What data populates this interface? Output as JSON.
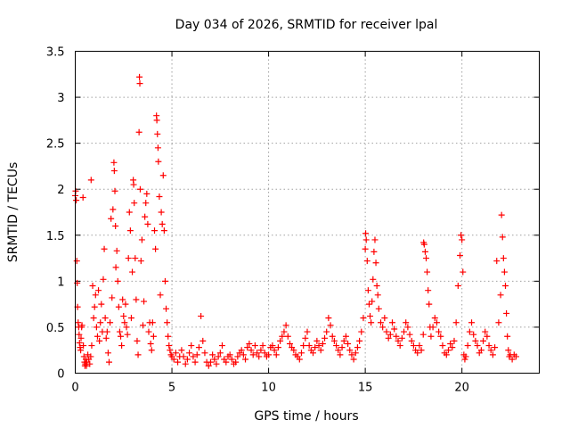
{
  "chart_data": {
    "type": "scatter",
    "title": "Day 034 of 2026, SRMTID for receiver lpal",
    "xlabel": "GPS time / hours",
    "ylabel": "SRMTID / TECUs",
    "xlim": [
      0,
      24
    ],
    "ylim": [
      0,
      3.5
    ],
    "xticks": [
      0,
      5,
      10,
      15,
      20
    ],
    "xtick_labels": [
      "0",
      "5",
      "10",
      "15",
      "20"
    ],
    "yticks": [
      0,
      0.5,
      1,
      1.5,
      2,
      2.5,
      3,
      3.5
    ],
    "ytick_labels": [
      "0",
      "0.5",
      "1",
      "1.5",
      "2",
      "2.5",
      "3",
      "3.5"
    ],
    "grid": true,
    "marker": "+",
    "color": "#ff0000",
    "series": [
      {
        "name": "SRMTID",
        "points": [
          [
            0.0,
            1.93
          ],
          [
            0.02,
            1.98
          ],
          [
            0.05,
            1.88
          ],
          [
            0.08,
            1.22
          ],
          [
            0.1,
            0.98
          ],
          [
            0.12,
            0.72
          ],
          [
            0.15,
            0.55
          ],
          [
            0.18,
            0.5
          ],
          [
            0.2,
            0.42
          ],
          [
            0.22,
            0.33
          ],
          [
            0.25,
            0.28
          ],
          [
            0.28,
            0.25
          ],
          [
            0.3,
            0.38
          ],
          [
            0.33,
            0.5
          ],
          [
            0.35,
            0.52
          ],
          [
            0.4,
            1.91
          ],
          [
            0.42,
            0.3
          ],
          [
            0.45,
            0.18
          ],
          [
            0.48,
            0.12
          ],
          [
            0.5,
            0.08
          ],
          [
            0.52,
            0.1
          ],
          [
            0.55,
            0.15
          ],
          [
            0.58,
            0.08
          ],
          [
            0.6,
            0.12
          ],
          [
            0.65,
            0.2
          ],
          [
            0.7,
            0.15
          ],
          [
            0.75,
            0.1
          ],
          [
            0.8,
            0.18
          ],
          [
            0.82,
            2.1
          ],
          [
            0.85,
            0.3
          ],
          [
            0.9,
            0.95
          ],
          [
            0.95,
            0.6
          ],
          [
            1.0,
            0.72
          ],
          [
            1.05,
            0.85
          ],
          [
            1.1,
            0.5
          ],
          [
            1.15,
            0.4
          ],
          [
            1.2,
            0.9
          ],
          [
            1.25,
            0.35
          ],
          [
            1.3,
            0.55
          ],
          [
            1.35,
            0.75
          ],
          [
            1.4,
            0.45
          ],
          [
            1.45,
            1.02
          ],
          [
            1.5,
            1.35
          ],
          [
            1.55,
            0.6
          ],
          [
            1.6,
            0.38
          ],
          [
            1.65,
            0.45
          ],
          [
            1.7,
            0.22
          ],
          [
            1.75,
            0.12
          ],
          [
            1.8,
            0.55
          ],
          [
            1.85,
            1.68
          ],
          [
            1.9,
            0.82
          ],
          [
            1.95,
            1.78
          ],
          [
            2.0,
            2.29
          ],
          [
            2.02,
            2.2
          ],
          [
            2.05,
            1.98
          ],
          [
            2.08,
            1.6
          ],
          [
            2.1,
            1.15
          ],
          [
            2.15,
            1.33
          ],
          [
            2.2,
            1.0
          ],
          [
            2.25,
            0.72
          ],
          [
            2.3,
            0.45
          ],
          [
            2.35,
            0.4
          ],
          [
            2.4,
            0.3
          ],
          [
            2.45,
            0.8
          ],
          [
            2.5,
            0.62
          ],
          [
            2.55,
            0.55
          ],
          [
            2.6,
            0.75
          ],
          [
            2.65,
            0.5
          ],
          [
            2.7,
            0.42
          ],
          [
            2.75,
            1.25
          ],
          [
            2.8,
            1.75
          ],
          [
            2.85,
            1.55
          ],
          [
            2.9,
            0.6
          ],
          [
            2.95,
            1.1
          ],
          [
            3.0,
            2.1
          ],
          [
            3.02,
            2.05
          ],
          [
            3.05,
            1.85
          ],
          [
            3.1,
            1.25
          ],
          [
            3.15,
            0.8
          ],
          [
            3.2,
            0.35
          ],
          [
            3.25,
            0.2
          ],
          [
            3.3,
            2.62
          ],
          [
            3.32,
            3.22
          ],
          [
            3.34,
            3.15
          ],
          [
            3.36,
            2.0
          ],
          [
            3.4,
            1.22
          ],
          [
            3.45,
            1.45
          ],
          [
            3.5,
            0.52
          ],
          [
            3.55,
            0.78
          ],
          [
            3.6,
            1.7
          ],
          [
            3.65,
            1.85
          ],
          [
            3.7,
            1.95
          ],
          [
            3.75,
            1.62
          ],
          [
            3.8,
            0.45
          ],
          [
            3.85,
            0.55
          ],
          [
            3.9,
            0.32
          ],
          [
            3.95,
            0.25
          ],
          [
            4.0,
            0.55
          ],
          [
            4.05,
            0.4
          ],
          [
            4.1,
            1.55
          ],
          [
            4.15,
            1.35
          ],
          [
            4.2,
            2.8
          ],
          [
            4.22,
            2.75
          ],
          [
            4.25,
            2.6
          ],
          [
            4.28,
            2.45
          ],
          [
            4.3,
            2.3
          ],
          [
            4.35,
            1.92
          ],
          [
            4.4,
            0.85
          ],
          [
            4.45,
            1.75
          ],
          [
            4.5,
            1.62
          ],
          [
            4.55,
            2.15
          ],
          [
            4.6,
            1.55
          ],
          [
            4.65,
            1.0
          ],
          [
            4.7,
            0.7
          ],
          [
            4.75,
            0.55
          ],
          [
            4.8,
            0.4
          ],
          [
            4.85,
            0.3
          ],
          [
            4.9,
            0.25
          ],
          [
            4.95,
            0.2
          ],
          [
            5.0,
            0.18
          ],
          [
            5.1,
            0.15
          ],
          [
            5.2,
            0.22
          ],
          [
            5.3,
            0.12
          ],
          [
            5.4,
            0.18
          ],
          [
            5.5,
            0.25
          ],
          [
            5.6,
            0.18
          ],
          [
            5.7,
            0.1
          ],
          [
            5.8,
            0.15
          ],
          [
            5.9,
            0.22
          ],
          [
            6.0,
            0.3
          ],
          [
            6.1,
            0.18
          ],
          [
            6.2,
            0.12
          ],
          [
            6.3,
            0.2
          ],
          [
            6.4,
            0.28
          ],
          [
            6.5,
            0.62
          ],
          [
            6.6,
            0.35
          ],
          [
            6.7,
            0.22
          ],
          [
            6.8,
            0.12
          ],
          [
            6.9,
            0.08
          ],
          [
            7.0,
            0.12
          ],
          [
            7.1,
            0.2
          ],
          [
            7.2,
            0.15
          ],
          [
            7.3,
            0.1
          ],
          [
            7.4,
            0.18
          ],
          [
            7.5,
            0.22
          ],
          [
            7.6,
            0.3
          ],
          [
            7.7,
            0.15
          ],
          [
            7.8,
            0.12
          ],
          [
            7.9,
            0.18
          ],
          [
            8.0,
            0.2
          ],
          [
            8.1,
            0.15
          ],
          [
            8.2,
            0.1
          ],
          [
            8.3,
            0.12
          ],
          [
            8.4,
            0.18
          ],
          [
            8.5,
            0.22
          ],
          [
            8.6,
            0.25
          ],
          [
            8.7,
            0.2
          ],
          [
            8.8,
            0.15
          ],
          [
            8.9,
            0.28
          ],
          [
            9.0,
            0.32
          ],
          [
            9.1,
            0.25
          ],
          [
            9.2,
            0.2
          ],
          [
            9.3,
            0.3
          ],
          [
            9.4,
            0.22
          ],
          [
            9.5,
            0.18
          ],
          [
            9.6,
            0.25
          ],
          [
            9.7,
            0.3
          ],
          [
            9.8,
            0.22
          ],
          [
            9.9,
            0.18
          ],
          [
            10.0,
            0.2
          ],
          [
            10.1,
            0.28
          ],
          [
            10.2,
            0.3
          ],
          [
            10.3,
            0.25
          ],
          [
            10.4,
            0.2
          ],
          [
            10.5,
            0.28
          ],
          [
            10.6,
            0.35
          ],
          [
            10.7,
            0.4
          ],
          [
            10.8,
            0.45
          ],
          [
            10.9,
            0.52
          ],
          [
            11.0,
            0.4
          ],
          [
            11.1,
            0.32
          ],
          [
            11.2,
            0.28
          ],
          [
            11.3,
            0.25
          ],
          [
            11.4,
            0.2
          ],
          [
            11.5,
            0.18
          ],
          [
            11.6,
            0.15
          ],
          [
            11.7,
            0.22
          ],
          [
            11.8,
            0.3
          ],
          [
            11.9,
            0.38
          ],
          [
            12.0,
            0.45
          ],
          [
            12.1,
            0.3
          ],
          [
            12.2,
            0.25
          ],
          [
            12.3,
            0.22
          ],
          [
            12.4,
            0.28
          ],
          [
            12.5,
            0.35
          ],
          [
            12.6,
            0.3
          ],
          [
            12.7,
            0.25
          ],
          [
            12.8,
            0.32
          ],
          [
            12.9,
            0.38
          ],
          [
            13.0,
            0.45
          ],
          [
            13.1,
            0.6
          ],
          [
            13.2,
            0.52
          ],
          [
            13.3,
            0.4
          ],
          [
            13.4,
            0.35
          ],
          [
            13.5,
            0.3
          ],
          [
            13.6,
            0.25
          ],
          [
            13.7,
            0.2
          ],
          [
            13.8,
            0.28
          ],
          [
            13.9,
            0.35
          ],
          [
            14.0,
            0.4
          ],
          [
            14.1,
            0.32
          ],
          [
            14.2,
            0.25
          ],
          [
            14.3,
            0.2
          ],
          [
            14.4,
            0.15
          ],
          [
            14.5,
            0.22
          ],
          [
            14.6,
            0.28
          ],
          [
            14.7,
            0.35
          ],
          [
            14.8,
            0.45
          ],
          [
            14.9,
            0.6
          ],
          [
            15.0,
            1.35
          ],
          [
            15.02,
            1.52
          ],
          [
            15.05,
            1.45
          ],
          [
            15.1,
            1.22
          ],
          [
            15.15,
            0.9
          ],
          [
            15.2,
            0.75
          ],
          [
            15.25,
            0.62
          ],
          [
            15.3,
            0.55
          ],
          [
            15.35,
            0.78
          ],
          [
            15.4,
            1.02
          ],
          [
            15.45,
            1.32
          ],
          [
            15.5,
            1.45
          ],
          [
            15.55,
            1.2
          ],
          [
            15.6,
            0.95
          ],
          [
            15.65,
            0.85
          ],
          [
            15.7,
            0.7
          ],
          [
            15.8,
            0.55
          ],
          [
            15.9,
            0.5
          ],
          [
            16.0,
            0.6
          ],
          [
            16.1,
            0.45
          ],
          [
            16.2,
            0.38
          ],
          [
            16.3,
            0.42
          ],
          [
            16.4,
            0.55
          ],
          [
            16.5,
            0.48
          ],
          [
            16.6,
            0.4
          ],
          [
            16.7,
            0.35
          ],
          [
            16.8,
            0.3
          ],
          [
            16.9,
            0.38
          ],
          [
            17.0,
            0.45
          ],
          [
            17.1,
            0.55
          ],
          [
            17.2,
            0.5
          ],
          [
            17.3,
            0.42
          ],
          [
            17.4,
            0.35
          ],
          [
            17.5,
            0.3
          ],
          [
            17.6,
            0.25
          ],
          [
            17.7,
            0.22
          ],
          [
            17.8,
            0.3
          ],
          [
            17.9,
            0.25
          ],
          [
            18.0,
            0.42
          ],
          [
            18.02,
            1.42
          ],
          [
            18.05,
            1.4
          ],
          [
            18.1,
            1.32
          ],
          [
            18.15,
            1.25
          ],
          [
            18.2,
            1.1
          ],
          [
            18.25,
            0.9
          ],
          [
            18.3,
            0.75
          ],
          [
            18.35,
            0.5
          ],
          [
            18.4,
            0.4
          ],
          [
            18.5,
            0.5
          ],
          [
            18.6,
            0.6
          ],
          [
            18.7,
            0.55
          ],
          [
            18.8,
            0.45
          ],
          [
            18.9,
            0.4
          ],
          [
            19.0,
            0.3
          ],
          [
            19.1,
            0.22
          ],
          [
            19.2,
            0.2
          ],
          [
            19.3,
            0.25
          ],
          [
            19.4,
            0.32
          ],
          [
            19.5,
            0.28
          ],
          [
            19.6,
            0.35
          ],
          [
            19.7,
            0.55
          ],
          [
            19.8,
            0.95
          ],
          [
            19.9,
            1.28
          ],
          [
            19.95,
            1.5
          ],
          [
            20.0,
            1.45
          ],
          [
            20.05,
            1.1
          ],
          [
            20.1,
            0.2
          ],
          [
            20.15,
            0.15
          ],
          [
            20.2,
            0.18
          ],
          [
            20.3,
            0.3
          ],
          [
            20.4,
            0.45
          ],
          [
            20.5,
            0.55
          ],
          [
            20.6,
            0.42
          ],
          [
            20.7,
            0.35
          ],
          [
            20.8,
            0.3
          ],
          [
            20.9,
            0.22
          ],
          [
            21.0,
            0.25
          ],
          [
            21.1,
            0.35
          ],
          [
            21.2,
            0.45
          ],
          [
            21.3,
            0.4
          ],
          [
            21.4,
            0.3
          ],
          [
            21.5,
            0.25
          ],
          [
            21.6,
            0.2
          ],
          [
            21.7,
            0.28
          ],
          [
            21.8,
            1.22
          ],
          [
            21.9,
            0.55
          ],
          [
            22.0,
            0.85
          ],
          [
            22.05,
            1.72
          ],
          [
            22.1,
            1.48
          ],
          [
            22.15,
            1.25
          ],
          [
            22.2,
            1.1
          ],
          [
            22.25,
            0.95
          ],
          [
            22.3,
            0.65
          ],
          [
            22.35,
            0.4
          ],
          [
            22.4,
            0.25
          ],
          [
            22.45,
            0.18
          ],
          [
            22.5,
            0.2
          ],
          [
            22.6,
            0.15
          ],
          [
            22.7,
            0.2
          ],
          [
            22.8,
            0.18
          ]
        ]
      }
    ]
  }
}
